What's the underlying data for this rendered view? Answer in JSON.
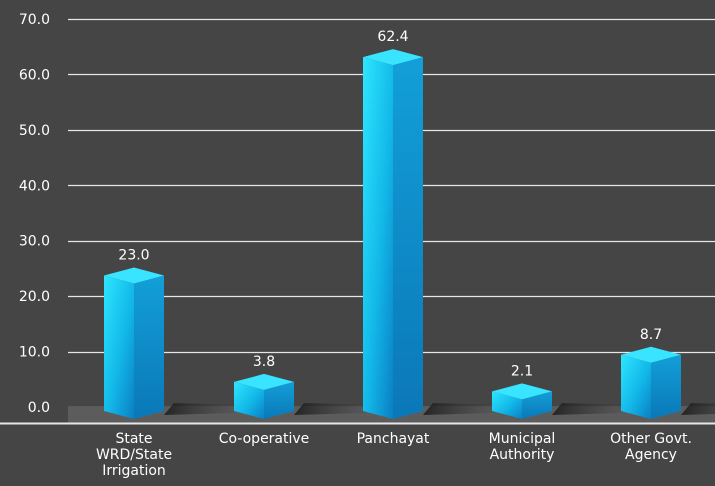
{
  "chart_data": {
    "type": "bar",
    "categories": [
      [
        "State",
        "WRD/State",
        "Irrigation"
      ],
      [
        "Co-operative"
      ],
      [
        "Panchayat"
      ],
      [
        "Municipal",
        "Authority"
      ],
      [
        "Other Govt.",
        "Agency"
      ]
    ],
    "values": [
      23.0,
      3.8,
      62.4,
      2.1,
      8.7
    ],
    "value_labels": [
      "23.0",
      "3.8",
      "62.4",
      "2.1",
      "8.7"
    ],
    "y_ticks": [
      "0.0",
      "10.0",
      "20.0",
      "30.0",
      "40.0",
      "50.0",
      "60.0",
      "70.0"
    ],
    "ylim": [
      0,
      70
    ],
    "grid": true,
    "legend": "none",
    "colors": {
      "background": "#454545",
      "grid": "#e6e6e6",
      "bar_light": "#2ee6ff",
      "bar_mid": "#12b8e8",
      "bar_dark": "#0a7fc4",
      "bar_top": "#38e4ff",
      "floor": "#5c5c5c"
    }
  }
}
